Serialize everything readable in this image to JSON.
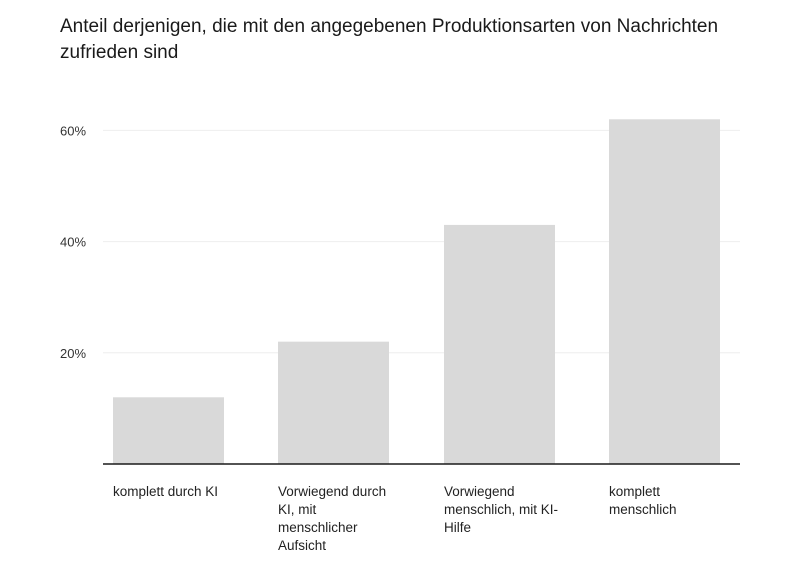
{
  "chart_data": {
    "type": "bar",
    "title": "Anteil derjenigen, die mit den angegebenen Produktionsarten von Nachrichten zufrieden sind",
    "categories": [
      "komplett durch KI",
      "Vorwiegend durch KI, mit menschlicher Aufsicht",
      "Vorwiegend menschlich, mit KI-Hilfe",
      "komplett menschlich"
    ],
    "values": [
      12,
      22,
      43,
      62
    ],
    "ylim": [
      0,
      65
    ],
    "yticks": [
      20,
      40,
      60
    ],
    "ytick_labels": [
      "20%",
      "40%",
      "60%"
    ],
    "xlabel": "",
    "ylabel": "",
    "grid": true,
    "bar_color": "#d9d9d9",
    "grid_color": "#eeeeee",
    "axis_color": "#1a1a1a"
  }
}
